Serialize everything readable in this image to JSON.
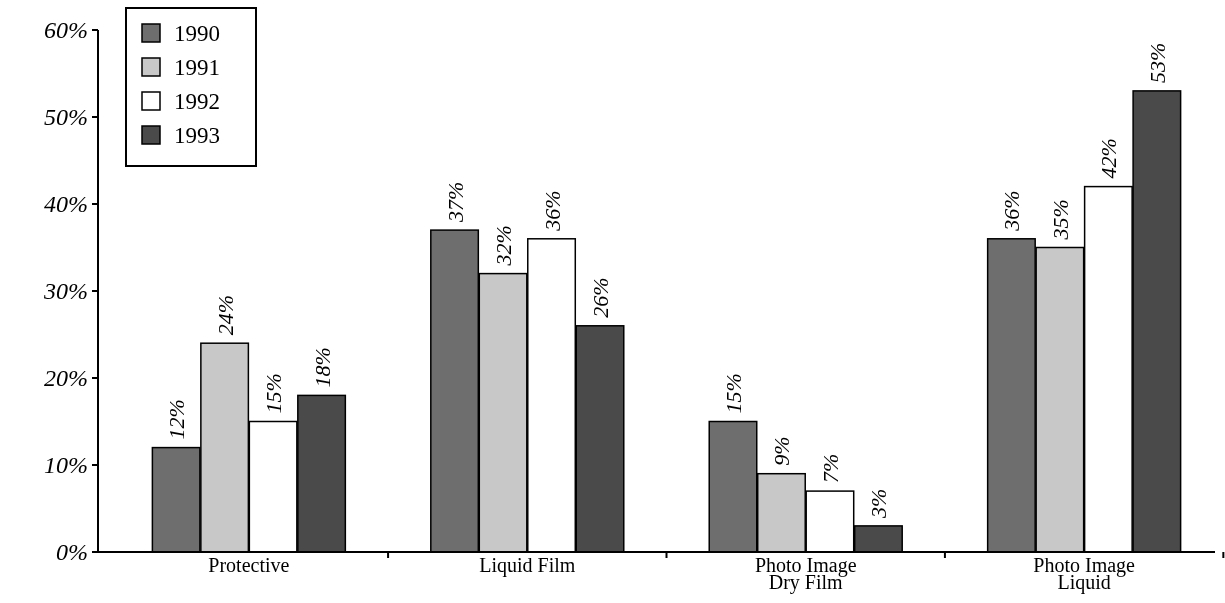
{
  "chart_data": {
    "type": "bar",
    "categories": [
      "Protective",
      "Liquid Film",
      "Photo Image Dry Film",
      "Photo Image Liquid"
    ],
    "series": [
      {
        "name": "1990",
        "color": "#6e6e6e",
        "values": [
          12,
          37,
          15,
          36
        ],
        "value_labels": [
          "12%",
          "37%",
          "15%",
          "36%"
        ]
      },
      {
        "name": "1991",
        "color": "#c8c8c8",
        "values": [
          24,
          32,
          9,
          35
        ],
        "value_labels": [
          "24%",
          "32%",
          "9%",
          "35%"
        ]
      },
      {
        "name": "1992",
        "color": "#ffffff",
        "values": [
          15,
          36,
          7,
          42
        ],
        "value_labels": [
          "15%",
          "36%",
          "7%",
          "42%"
        ]
      },
      {
        "name": "1993",
        "color": "#4a4a4a",
        "values": [
          18,
          26,
          3,
          53
        ],
        "value_labels": [
          "18%",
          "26%",
          "3%",
          "53%"
        ]
      }
    ],
    "ylim": [
      0,
      60
    ],
    "yticks": [
      {
        "value": 0,
        "label": "0%"
      },
      {
        "value": 10,
        "label": "10%"
      },
      {
        "value": 20,
        "label": "20%"
      },
      {
        "value": 30,
        "label": "30%"
      },
      {
        "value": 40,
        "label": "40%"
      },
      {
        "value": 50,
        "label": "50%"
      },
      {
        "value": 60,
        "label": "60%"
      }
    ],
    "legend": "top left",
    "grid": false
  }
}
